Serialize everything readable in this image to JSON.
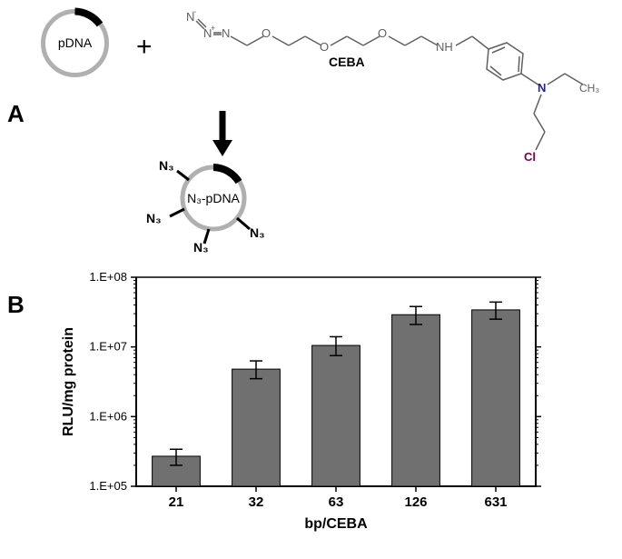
{
  "panel_labels": {
    "a": "A",
    "b": "B"
  },
  "plasmid": {
    "label_before": "pDNA",
    "label_after": "N₃-pDNA"
  },
  "chemical": {
    "name_label": "CEBA",
    "azide_minus": "N⁻",
    "azide_plus": "N⁺",
    "azide_n": "N",
    "o_atom": "O",
    "nh_label": "NH",
    "n_atom": "N",
    "ch3": "CH₃",
    "cl": "Cl"
  },
  "n3_labels": [
    "N₃",
    "N₃",
    "N₃",
    "N₃"
  ],
  "plus": "+",
  "chart": {
    "type": "bar",
    "y_axis_title": "RLU/mg protein",
    "x_axis_title": "bp/CEBA",
    "y_scale": "log",
    "y_min_exp": 5,
    "y_max_exp": 8,
    "y_tick_labels": [
      "1.E+05",
      "1.E+06",
      "1.E+07",
      "1.E+08"
    ],
    "y_tick_exponents": [
      5,
      6,
      7,
      8
    ],
    "categories": [
      "21",
      "32",
      "63",
      "126",
      "631"
    ],
    "values": [
      270000.0,
      4800000.0,
      10500000.0,
      29000000.0,
      34000000.0
    ],
    "errors_low": [
      70000.0,
      1300000.0,
      3000000.0,
      8000000.0,
      9000000.0
    ],
    "errors_high": [
      70000.0,
      1500000.0,
      3500000.0,
      9000000.0,
      10000000.0
    ],
    "bar_color": "#707070",
    "bar_stroke": "#000000",
    "background_color": "#ffffff",
    "axis_color": "#000000",
    "bar_width_ratio": 0.6
  }
}
